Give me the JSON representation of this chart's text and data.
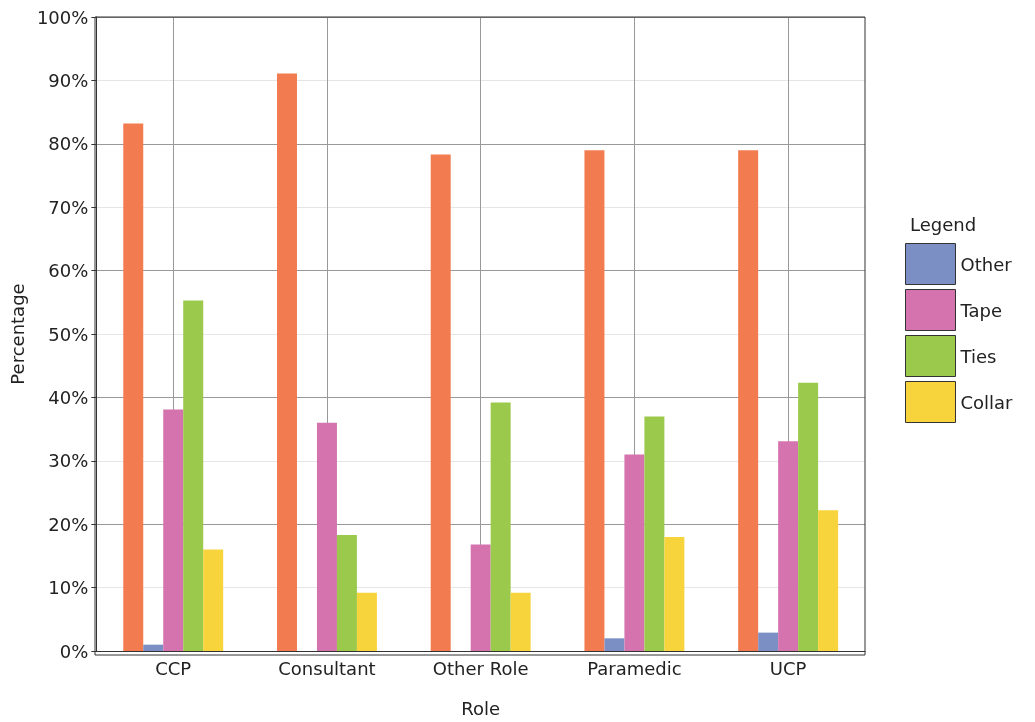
{
  "chart_data": {
    "type": "bar",
    "xlabel": "Role",
    "ylabel": "Percentage",
    "legend_title": "Legend",
    "categories": [
      "CCP",
      "Consultant",
      "Other Role",
      "Paramedic",
      "UCP"
    ],
    "series": [
      {
        "color": "#f27b50",
        "values": [
          83.2,
          91.1,
          78.3,
          79,
          79
        ]
      },
      {
        "name": "Other",
        "color": "#7b8fc4",
        "values": [
          1,
          0,
          0,
          2,
          2.9
        ]
      },
      {
        "name": "Tape",
        "color": "#d473ad",
        "values": [
          38.1,
          36,
          16.8,
          31,
          33.1
        ]
      },
      {
        "name": "Ties",
        "color": "#9bc94b",
        "values": [
          55.3,
          18.3,
          39.2,
          37,
          42.3
        ]
      },
      {
        "name": "Collar",
        "color": "#f8d43c",
        "values": [
          16,
          9.2,
          9.2,
          18,
          22.2
        ]
      }
    ],
    "ylim": [
      0,
      100
    ],
    "yticks": [
      {
        "value": 0,
        "label": "0%"
      },
      {
        "value": 10,
        "label": "10%"
      },
      {
        "value": 20,
        "label": "20%"
      },
      {
        "value": 30,
        "label": "30%"
      },
      {
        "value": 40,
        "label": "40%"
      },
      {
        "value": 50,
        "label": "50%"
      },
      {
        "value": 60,
        "label": "60%"
      },
      {
        "value": 70,
        "label": "70%"
      },
      {
        "value": 80,
        "label": "80%"
      },
      {
        "value": 90,
        "label": "90%"
      },
      {
        "value": 100,
        "label": "100%"
      }
    ],
    "grid": true,
    "legend": "right"
  }
}
